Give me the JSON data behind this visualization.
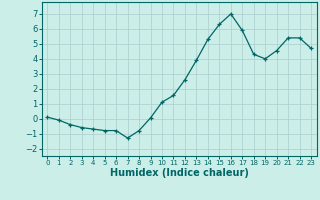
{
  "x": [
    0,
    1,
    2,
    3,
    4,
    5,
    6,
    7,
    8,
    9,
    10,
    11,
    12,
    13,
    14,
    15,
    16,
    17,
    18,
    19,
    20,
    21,
    22,
    23
  ],
  "y": [
    0.1,
    -0.1,
    -0.4,
    -0.6,
    -0.7,
    -0.8,
    -0.8,
    -1.3,
    -0.8,
    0.05,
    1.1,
    1.55,
    2.6,
    3.9,
    5.3,
    6.3,
    7.0,
    5.9,
    4.3,
    4.0,
    4.55,
    5.4,
    5.4,
    4.7
  ],
  "xlabel": "Humidex (Indice chaleur)",
  "line_color": "#006666",
  "marker": "+",
  "bg_color": "#cceee8",
  "grid_color": "#aacccc",
  "ylim": [
    -2.5,
    7.8
  ],
  "xlim": [
    -0.5,
    23.5
  ],
  "yticks": [
    -2,
    -1,
    0,
    1,
    2,
    3,
    4,
    5,
    6,
    7
  ],
  "xticks": [
    0,
    1,
    2,
    3,
    4,
    5,
    6,
    7,
    8,
    9,
    10,
    11,
    12,
    13,
    14,
    15,
    16,
    17,
    18,
    19,
    20,
    21,
    22,
    23
  ],
  "xlabel_fontsize": 7,
  "tick_fontsize_y": 6,
  "tick_fontsize_x": 5
}
